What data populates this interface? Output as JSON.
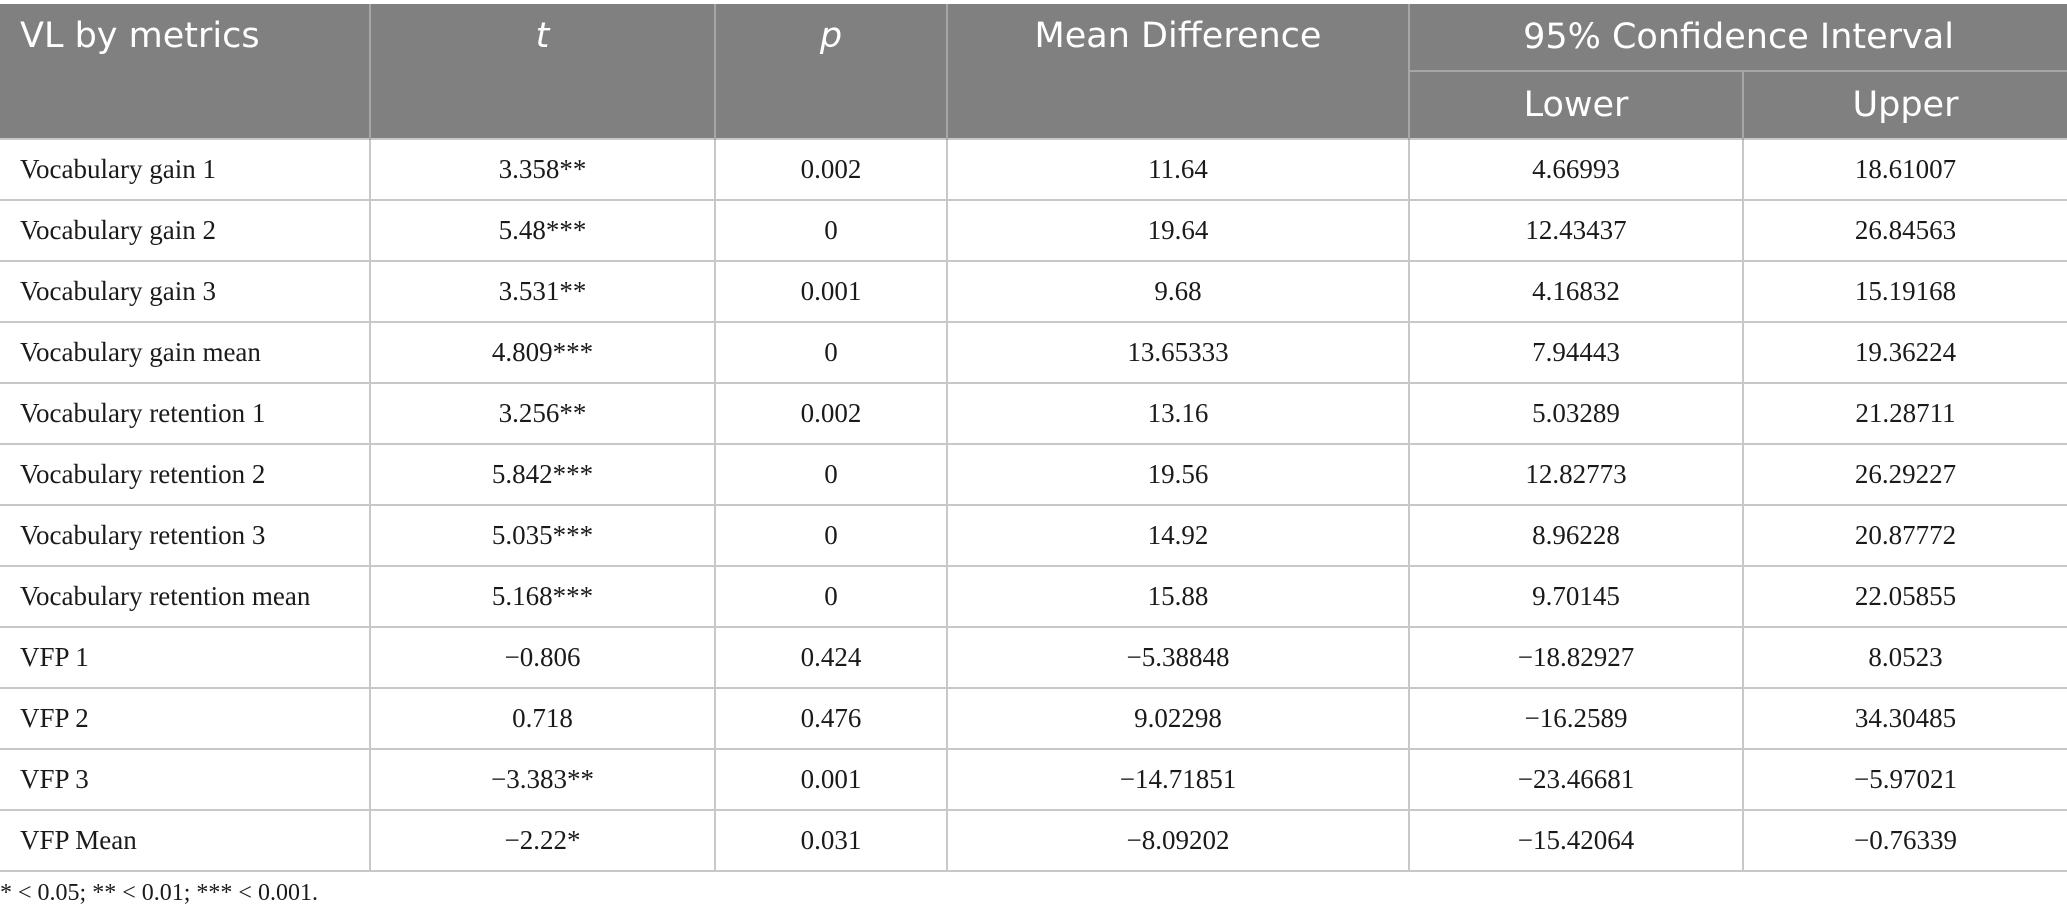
{
  "table": {
    "headers": {
      "metric": "VL by metrics",
      "t": "t",
      "p": "p",
      "mean_difference": "Mean Difference",
      "ci": "95% Confidence Interval",
      "lower": "Lower",
      "upper": "Upper"
    },
    "rows": [
      {
        "metric": "Vocabulary gain 1",
        "t": "3.358**",
        "p": "0.002",
        "md": "11.64",
        "lower": "4.66993",
        "upper": "18.61007"
      },
      {
        "metric": "Vocabulary gain 2",
        "t": "5.48***",
        "p": "0",
        "md": "19.64",
        "lower": "12.43437",
        "upper": "26.84563"
      },
      {
        "metric": "Vocabulary gain 3",
        "t": "3.531**",
        "p": "0.001",
        "md": "9.68",
        "lower": "4.16832",
        "upper": "15.19168"
      },
      {
        "metric": "Vocabulary gain mean",
        "t": "4.809***",
        "p": "0",
        "md": "13.65333",
        "lower": "7.94443",
        "upper": "19.36224"
      },
      {
        "metric": "Vocabulary retention 1",
        "t": "3.256**",
        "p": "0.002",
        "md": "13.16",
        "lower": "5.03289",
        "upper": "21.28711"
      },
      {
        "metric": "Vocabulary retention 2",
        "t": "5.842***",
        "p": "0",
        "md": "19.56",
        "lower": "12.82773",
        "upper": "26.29227"
      },
      {
        "metric": "Vocabulary retention 3",
        "t": "5.035***",
        "p": "0",
        "md": "14.92",
        "lower": "8.96228",
        "upper": "20.87772"
      },
      {
        "metric": "Vocabulary retention mean",
        "t": "5.168***",
        "p": "0",
        "md": "15.88",
        "lower": "9.70145",
        "upper": "22.05855"
      },
      {
        "metric": "VFP 1",
        "t": "−0.806",
        "p": "0.424",
        "md": "−5.38848",
        "lower": "−18.82927",
        "upper": "8.0523"
      },
      {
        "metric": "VFP 2",
        "t": "0.718",
        "p": "0.476",
        "md": "9.02298",
        "lower": "−16.2589",
        "upper": "34.30485"
      },
      {
        "metric": "VFP 3",
        "t": "−3.383**",
        "p": "0.001",
        "md": "−14.71851",
        "lower": "−23.46681",
        "upper": "−5.97021"
      },
      {
        "metric": "VFP Mean",
        "t": "−2.22*",
        "p": "0.031",
        "md": "−8.09202",
        "lower": "−15.42064",
        "upper": "−0.76339"
      }
    ]
  },
  "footnote": "* < 0.05; ** < 0.01; *** < 0.001.",
  "colors": {
    "header_bg": "#808080",
    "header_text": "#ffffff",
    "grid": "#c8c8c8"
  }
}
